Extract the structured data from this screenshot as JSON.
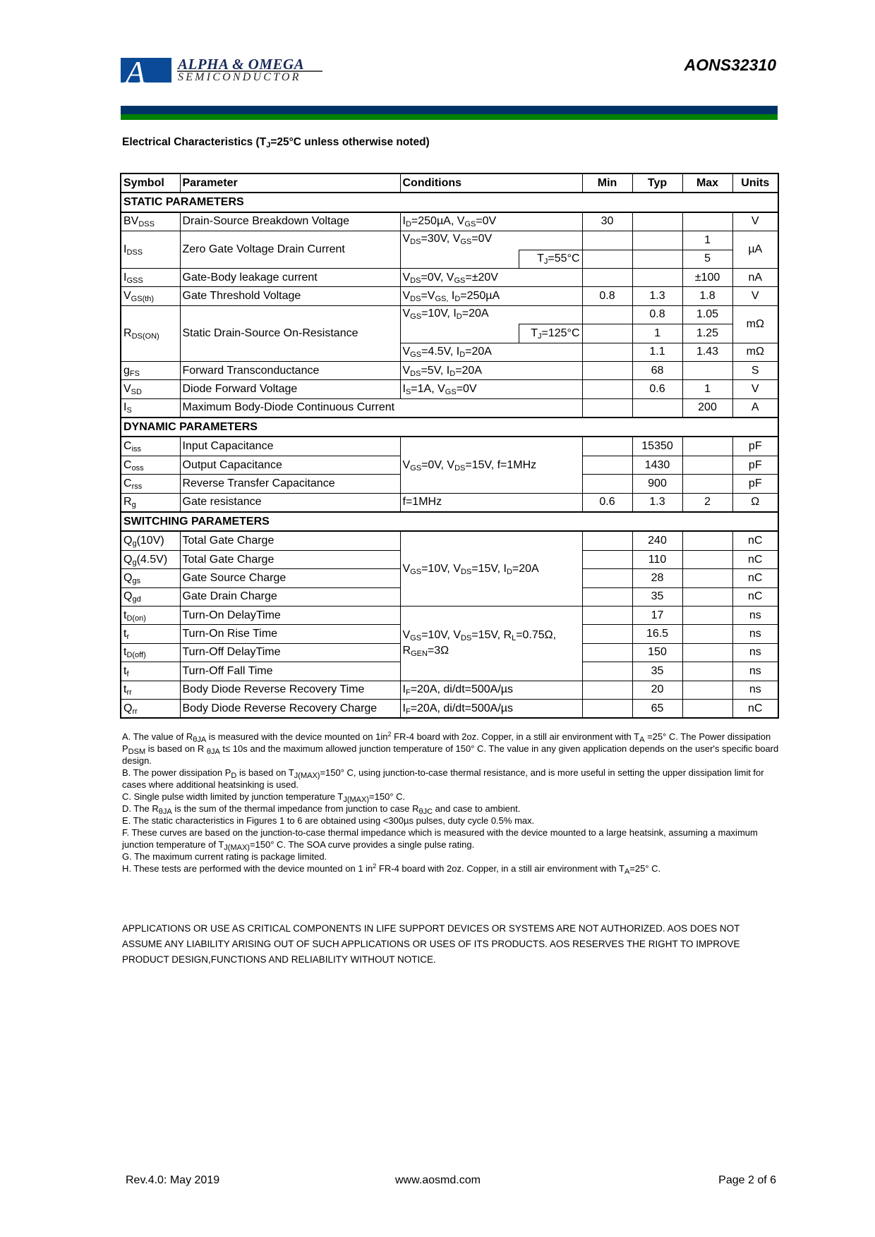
{
  "header": {
    "logo_name": "ALPHA & OMEGA",
    "logo_sub": "SEMICONDUCTOR",
    "part_number": "AONS32310",
    "colors": {
      "navy": "#003366",
      "green": "#008000",
      "logo_blue": "#0a4a96"
    }
  },
  "title": "Electrical Characteristics (T_{J}=25°C unless otherwise noted)",
  "table": {
    "columns": [
      "Symbol",
      "Parameter",
      "Conditions",
      "Min",
      "Typ",
      "Max",
      "Units"
    ],
    "static": {
      "label": "STATIC PARAMETERS",
      "rows": [
        {
          "sym": "BV_{DSS}",
          "param": "Drain-Source Breakdown Voltage",
          "cond": "I_{D}=250µA, V_{GS}=0V",
          "min": "30",
          "typ": "",
          "max": "",
          "units": "V"
        },
        {
          "sym": "I_{DSS}",
          "param": "Zero Gate Voltage Drain Current",
          "cond": "V_{DS}=30V, V_{GS}=0V",
          "max": "1",
          "units": "µA",
          "cond2": "T_{J}=55°C",
          "max2": "5"
        },
        {
          "sym": "I_{GSS}",
          "param": "Gate-Body leakage current",
          "cond": "V_{DS}=0V, V_{GS}=±20V",
          "max": "±100",
          "units": "nA"
        },
        {
          "sym": "V_{GS(th)}",
          "param": "Gate Threshold Voltage",
          "cond": "V_{DS}=V_{GS,} I_{D}=250µA",
          "min": "0.8",
          "typ": "1.3",
          "max": "1.8",
          "units": "V"
        },
        {
          "sym": "R_{DS(ON)}",
          "param": "Static Drain-Source On-Resistance",
          "cond": "V_{GS}=10V, I_{D}=20A",
          "typ": "0.8",
          "max": "1.05",
          "units": "mΩ",
          "cond2": "T_{J}=125°C",
          "typ2": "1",
          "max2": "1.25",
          "cond3": "V_{GS}=4.5V, I_{D}=20A",
          "typ3": "1.1",
          "max3": "1.43",
          "units3": "mΩ"
        },
        {
          "sym": "g_{FS}",
          "param": "Forward Transconductance",
          "cond": "V_{DS}=5V, I_{D}=20A",
          "typ": "68",
          "units": "S"
        },
        {
          "sym": "V_{SD}",
          "param": "Diode Forward Voltage",
          "cond": "I_{S}=1A, V_{GS}=0V",
          "typ": "0.6",
          "max": "1",
          "units": "V"
        },
        {
          "sym": "I_{S}",
          "param": "Maximum Body-Diode Continuous Current",
          "max": "200",
          "units": "A"
        }
      ]
    },
    "dynamic": {
      "label": "DYNAMIC PARAMETERS",
      "cap_cond": "V_{GS}=0V, V_{DS}=15V, f=1MHz",
      "rows": [
        {
          "sym": "C_{iss}",
          "param": "Input Capacitance",
          "typ": "15350",
          "units": "pF"
        },
        {
          "sym": "C_{oss}",
          "param": "Output Capacitance",
          "typ": "1430",
          "units": "pF"
        },
        {
          "sym": "C_{rss}",
          "param": "Reverse Transfer Capacitance",
          "typ": "900",
          "units": "pF"
        },
        {
          "sym": "R_{g}",
          "param": "Gate resistance",
          "cond": "f=1MHz",
          "min": "0.6",
          "typ": "1.3",
          "max": "2",
          "units": "Ω"
        }
      ]
    },
    "switching": {
      "label": "SWITCHING PARAMETERS",
      "charge_cond": "V_{GS}=10V, V_{DS}=15V, I_{D}=20A",
      "time_cond_1": "V_{GS}=10V, V_{DS}=15V, R_{L}=0.75Ω,",
      "time_cond_2": "R_{GEN}=3Ω",
      "rows": [
        {
          "sym": "Q_{g}(10V)",
          "param": "Total Gate Charge",
          "typ": "240",
          "units": "nC"
        },
        {
          "sym": "Q_{g}(4.5V)",
          "param": "Total Gate Charge",
          "typ": "110",
          "units": "nC"
        },
        {
          "sym": "Q_{gs}",
          "param": "Gate Source Charge",
          "typ": "28",
          "units": "nC"
        },
        {
          "sym": "Q_{gd}",
          "param": "Gate Drain Charge",
          "typ": "35",
          "units": "nC"
        },
        {
          "sym": "t_{D(on)}",
          "param": "Turn-On DelayTime",
          "typ": "17",
          "units": "ns"
        },
        {
          "sym": "t_{r}",
          "param": "Turn-On Rise Time",
          "typ": "16.5",
          "units": "ns"
        },
        {
          "sym": "t_{D(off)}",
          "param": "Turn-Off DelayTime",
          "typ": "150",
          "units": "ns"
        },
        {
          "sym": "t_{f}",
          "param": "Turn-Off Fall Time",
          "typ": "35",
          "units": "ns"
        },
        {
          "sym": "t_{rr}",
          "param": "Body Diode Reverse Recovery Time",
          "cond": "I_{F}=20A, di/dt=500A/µs",
          "typ": "20",
          "units": "ns"
        },
        {
          "sym": "Q_{rr}",
          "param": "Body Diode Reverse Recovery Charge",
          "cond": "I_{F}=20A, di/dt=500A/µs",
          "typ": "65",
          "units": "nC"
        }
      ]
    }
  },
  "notes": [
    "A. The value of R_{θJA} is measured with the device mounted on 1in^{2} FR-4 board with 2oz. Copper, in a still air environment with T_{A} =25° C. The Power dissipation P_{DSM} is based on R _{θJA} t≤ 10s and the maximum allowed junction temperature of 150° C. The value in any given application depends on the user's specific board design.",
    "B. The power dissipation P_{D} is based on T_{J(MAX)}=150° C, using junction-to-case thermal resistance, and is more useful in setting the upper dissipation limit for cases where additional heatsinking is used.",
    "C. Single pulse width limited by junction temperature T_{J(MAX)}=150° C.",
    "D. The R_{θJA} is the sum of the thermal impedance from junction to case R_{θJC} and case to ambient.",
    "E. The static characteristics in Figures 1 to 6 are obtained using <300µs pulses, duty cycle 0.5% max.",
    "F. These curves are based on the junction-to-case thermal impedance which is measured with the device mounted to a large heatsink, assuming a maximum junction temperature of T_{J(MAX)}=150° C. The SOA curve provides a single pulse rating.",
    "G. The maximum current rating is package limited.",
    "H. These tests are performed with the device mounted on 1 in^{2} FR-4 board with 2oz. Copper, in a still air environment with T_{A}=25° C."
  ],
  "disclaimer": "APPLICATIONS OR USE AS CRITICAL COMPONENTS IN LIFE SUPPORT DEVICES OR SYSTEMS ARE NOT AUTHORIZED. AOS DOES NOT ASSUME ANY LIABILITY ARISING OUT OF SUCH APPLICATIONS OR USES OF ITS PRODUCTS.  AOS RESERVES THE RIGHT TO IMPROVE PRODUCT DESIGN,FUNCTIONS AND RELIABILITY WITHOUT NOTICE.",
  "footer": {
    "revision": "Rev.4.0: May 2019",
    "website": "www.aosmd.com",
    "page": "Page 2 of 6"
  }
}
